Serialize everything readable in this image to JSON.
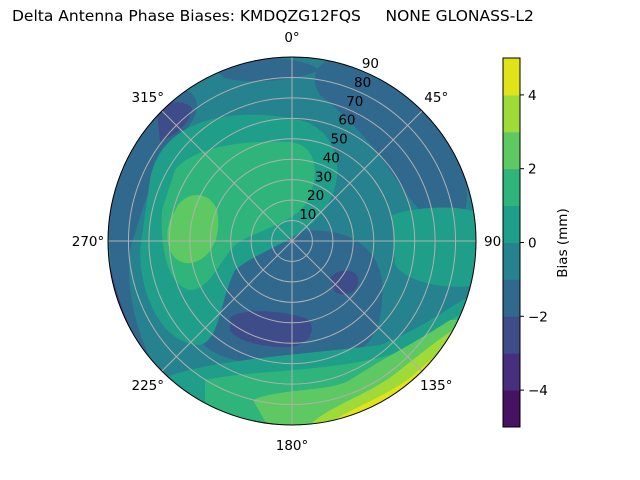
{
  "chart_data": {
    "type": "contour",
    "projection": "polar",
    "title": "Delta Antenna Phase Biases: KMDQZG12FQS     NONE GLONASS-L2",
    "theta_direction": "clockwise",
    "theta_zero": "top",
    "theta_tick_labels": [
      "0°",
      "45°",
      "90°",
      "135°",
      "180°",
      "225°",
      "270°",
      "315°"
    ],
    "theta_tick_values": [
      0,
      45,
      90,
      135,
      180,
      225,
      270,
      315
    ],
    "r_tick_labels": [
      "10",
      "20",
      "30",
      "40",
      "50",
      "60",
      "70",
      "80",
      "90"
    ],
    "r_tick_values": [
      10,
      20,
      30,
      40,
      50,
      60,
      70,
      80,
      90
    ],
    "rlim": [
      0,
      90
    ],
    "grid": true,
    "levels": [
      -5,
      -4,
      -3,
      -2,
      -1,
      0,
      1,
      2,
      3,
      4,
      5
    ],
    "colormap": "viridis",
    "band_colors": [
      "#471164",
      "#472f7d",
      "#3e4c8a",
      "#31688e",
      "#26828e",
      "#1f9e89",
      "#2fb47c",
      "#5ec962",
      "#a0da39",
      "#e0e318"
    ],
    "colorbar": {
      "label": "Bias (mm)",
      "range": [
        -5,
        5
      ],
      "tick_values": [
        -4,
        -2,
        0,
        2,
        4
      ],
      "tick_labels": [
        "−4",
        "−2",
        "0",
        "2",
        "4"
      ]
    }
  }
}
